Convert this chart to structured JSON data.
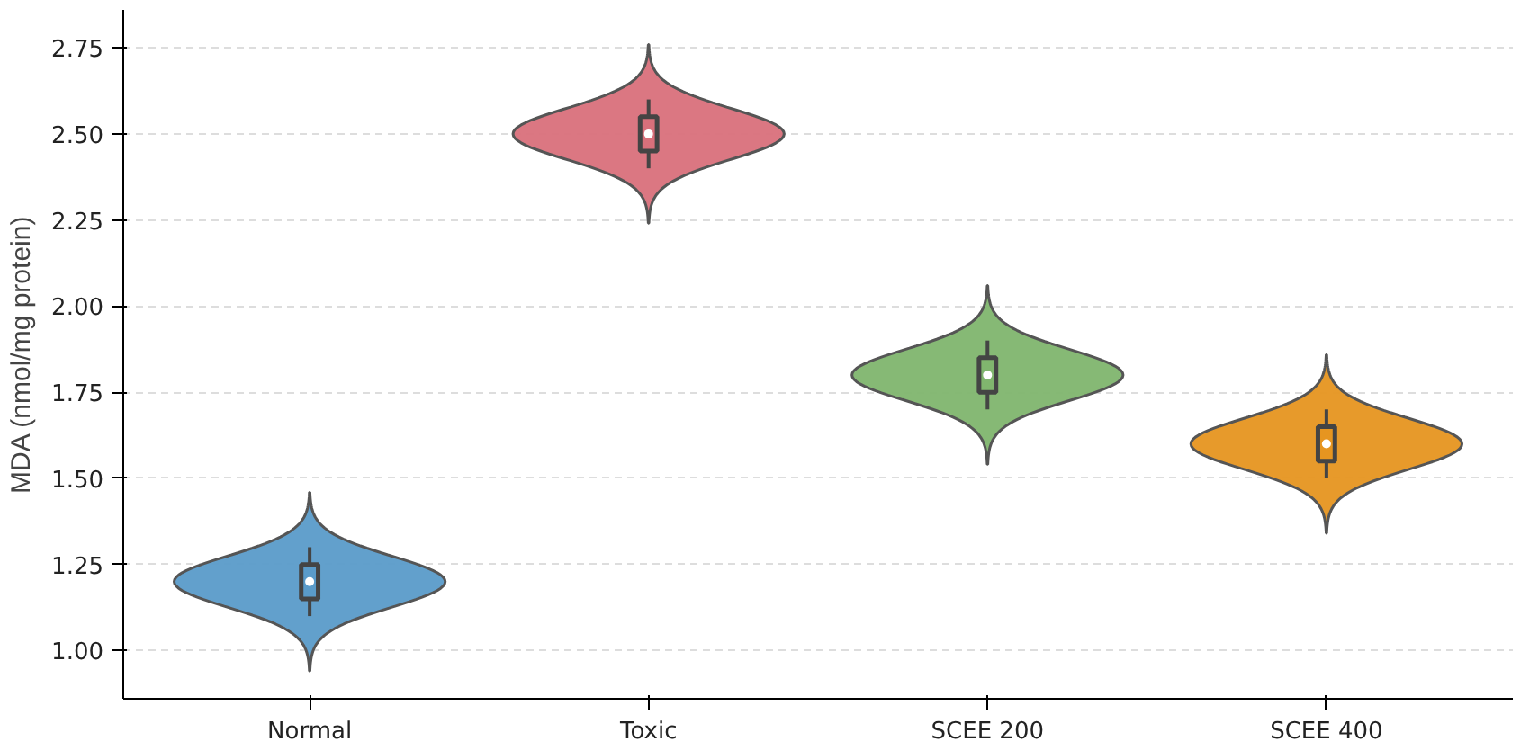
{
  "chart_data": {
    "type": "box",
    "ylabel": "MDA (nmol/mg protein)",
    "categories": [
      "Normal",
      "Toxic",
      "SCEE 200",
      "SCEE 400"
    ],
    "colors": [
      "#5a9bc9",
      "#d9707b",
      "#80b56e",
      "#e69520"
    ],
    "boxes": [
      {
        "low": 1.1,
        "q1": 1.15,
        "median": 1.2,
        "q3": 1.25,
        "high": 1.3
      },
      {
        "low": 2.4,
        "q1": 2.45,
        "median": 2.5,
        "q3": 2.55,
        "high": 2.6
      },
      {
        "low": 1.7,
        "q1": 1.75,
        "median": 1.8,
        "q3": 1.85,
        "high": 1.9
      },
      {
        "low": 1.5,
        "q1": 1.55,
        "median": 1.6,
        "q3": 1.65,
        "high": 1.7
      }
    ],
    "ylim": [
      0.86,
      2.86
    ],
    "yticks": [
      {
        "value": 1,
        "label": "1.00"
      },
      {
        "value": 1.25,
        "label": "1.25"
      },
      {
        "value": 1.5,
        "label": "1.50"
      },
      {
        "value": 1.75,
        "label": "1.75"
      },
      {
        "value": 2,
        "label": "2.00"
      },
      {
        "value": 2.25,
        "label": "2.25"
      },
      {
        "value": 2.5,
        "label": "2.50"
      },
      {
        "value": 2.75,
        "label": "2.75"
      }
    ],
    "grid": "y"
  }
}
